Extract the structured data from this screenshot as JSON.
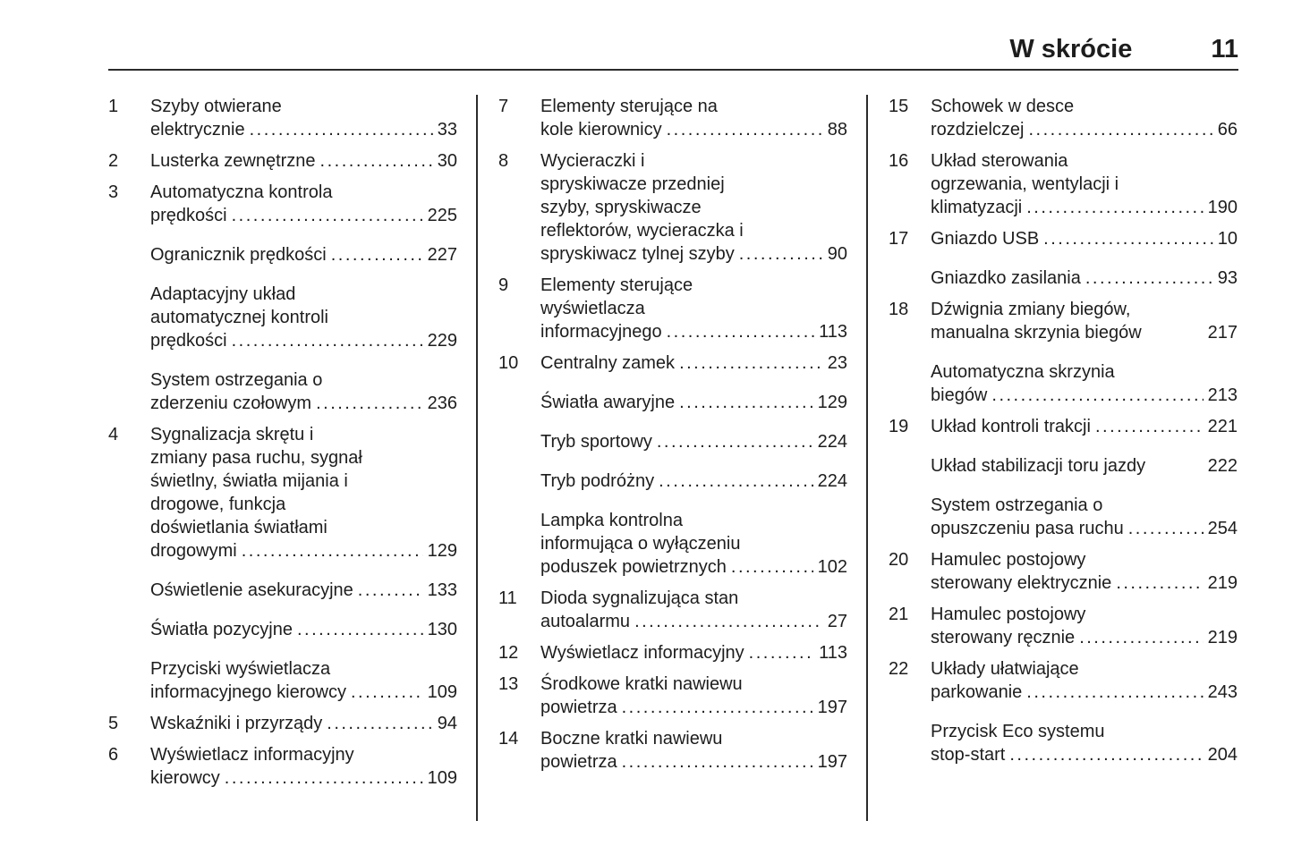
{
  "header": {
    "title": "W skrócie",
    "page_number": "11"
  },
  "columns": [
    {
      "items": [
        {
          "num": "1",
          "pre": [
            "Szyby otwierane"
          ],
          "last": "elektrycznie",
          "dots": true,
          "page": "33"
        },
        {
          "num": "2",
          "pre": [],
          "last": "Lusterka zewnętrzne",
          "dots": true,
          "page": "30"
        },
        {
          "num": "3",
          "pre": [
            "Automatyczna kontrola"
          ],
          "last": "prędkości",
          "dots": true,
          "page": "225"
        },
        {
          "num": "",
          "pre": [],
          "last": "Ogranicznik prędkości",
          "dots": true,
          "page": "227"
        },
        {
          "num": "",
          "pre": [
            "Adaptacyjny układ",
            "automatycznej kontroli"
          ],
          "last": "prędkości",
          "dots": true,
          "page": "229"
        },
        {
          "num": "",
          "pre": [
            "System ostrzegania o"
          ],
          "last": "zderzeniu czołowym",
          "dots": true,
          "page": "236"
        },
        {
          "num": "4",
          "pre": [
            "Sygnalizacja skrętu i",
            "zmiany pasa ruchu, sygnał",
            "świetlny, światła mijania i",
            "drogowe, funkcja",
            "doświetlania światłami"
          ],
          "last": "drogowymi",
          "dots": true,
          "page": "129"
        },
        {
          "num": "",
          "pre": [],
          "last": "Oświetlenie asekuracyjne",
          "dots": true,
          "page": "133"
        },
        {
          "num": "",
          "pre": [],
          "last": "Światła pozycyjne",
          "dots": true,
          "page": "130"
        },
        {
          "num": "",
          "pre": [
            "Przyciski wyświetlacza"
          ],
          "last": "informacyjnego kierowcy",
          "dots": true,
          "page": "109"
        },
        {
          "num": "5",
          "pre": [],
          "last": "Wskaźniki i przyrządy",
          "dots": true,
          "page": "94"
        },
        {
          "num": "6",
          "pre": [
            "Wyświetlacz informacyjny"
          ],
          "last": "kierowcy",
          "dots": true,
          "page": "109"
        }
      ]
    },
    {
      "items": [
        {
          "num": "7",
          "pre": [
            "Elementy sterujące na"
          ],
          "last": "kole kierownicy",
          "dots": true,
          "page": "88"
        },
        {
          "num": "8",
          "pre": [
            "Wycieraczki i",
            "spryskiwacze przedniej",
            "szyby, spryskiwacze",
            "reflektorów, wycieraczka i"
          ],
          "last": "spryskiwacz tylnej szyby",
          "dots": true,
          "page": "90"
        },
        {
          "num": "9",
          "pre": [
            "Elementy sterujące",
            "wyświetlacza"
          ],
          "last": "informacyjnego",
          "dots": true,
          "page": "113"
        },
        {
          "num": "10",
          "pre": [],
          "last": "Centralny zamek",
          "dots": true,
          "page": "23"
        },
        {
          "num": "",
          "pre": [],
          "last": "Światła awaryjne",
          "dots": true,
          "page": "129"
        },
        {
          "num": "",
          "pre": [],
          "last": "Tryb sportowy",
          "dots": true,
          "page": "224"
        },
        {
          "num": "",
          "pre": [],
          "last": "Tryb podróżny",
          "dots": true,
          "page": "224"
        },
        {
          "num": "",
          "pre": [
            "Lampka kontrolna",
            "informująca o wyłączeniu"
          ],
          "last": "poduszek powietrznych",
          "dots": true,
          "page": "102"
        },
        {
          "num": "11",
          "pre": [
            "Dioda sygnalizująca stan"
          ],
          "last": "autoalarmu",
          "dots": true,
          "page": "27"
        },
        {
          "num": "12",
          "pre": [],
          "last": "Wyświetlacz informacyjny",
          "dots": true,
          "page": "113"
        },
        {
          "num": "13",
          "pre": [
            "Środkowe kratki nawiewu"
          ],
          "last": "powietrza",
          "dots": true,
          "page": "197"
        },
        {
          "num": "14",
          "pre": [
            "Boczne kratki nawiewu"
          ],
          "last": "powietrza",
          "dots": true,
          "page": "197"
        }
      ]
    },
    {
      "items": [
        {
          "num": "15",
          "pre": [
            "Schowek w desce"
          ],
          "last": "rozdzielczej",
          "dots": true,
          "page": "66"
        },
        {
          "num": "16",
          "pre": [
            "Układ sterowania",
            "ogrzewania, wentylacji i"
          ],
          "last": "klimatyzacji",
          "dots": true,
          "page": "190"
        },
        {
          "num": "17",
          "pre": [],
          "last": "Gniazdo USB",
          "dots": true,
          "page": "10"
        },
        {
          "num": "",
          "pre": [],
          "last": "Gniazdko zasilania",
          "dots": true,
          "page": "93"
        },
        {
          "num": "18",
          "pre": [
            "Dźwignia zmiany biegów,"
          ],
          "last": "manualna skrzynia biegów",
          "dots": false,
          "page": "217"
        },
        {
          "num": "",
          "pre": [
            "Automatyczna skrzynia"
          ],
          "last": "biegów",
          "dots": true,
          "page": "213"
        },
        {
          "num": "19",
          "pre": [],
          "last": "Układ kontroli trakcji",
          "dots": true,
          "page": "221"
        },
        {
          "num": "",
          "pre": [],
          "last": "Układ stabilizacji toru jazdy",
          "dots": false,
          "page": "222"
        },
        {
          "num": "",
          "pre": [
            "System ostrzegania o"
          ],
          "last": "opuszczeniu pasa ruchu",
          "dots": true,
          "page": "254"
        },
        {
          "num": "20",
          "pre": [
            "Hamulec postojowy"
          ],
          "last": "sterowany elektrycznie",
          "dots": true,
          "page": "219"
        },
        {
          "num": "21",
          "pre": [
            "Hamulec postojowy"
          ],
          "last": "sterowany ręcznie",
          "dots": true,
          "page": "219"
        },
        {
          "num": "22",
          "pre": [
            "Układy ułatwiające"
          ],
          "last": "parkowanie",
          "dots": true,
          "page": "243"
        },
        {
          "num": "",
          "pre": [
            "Przycisk Eco systemu"
          ],
          "last": "stop-start",
          "dots": true,
          "page": "204"
        }
      ]
    }
  ]
}
